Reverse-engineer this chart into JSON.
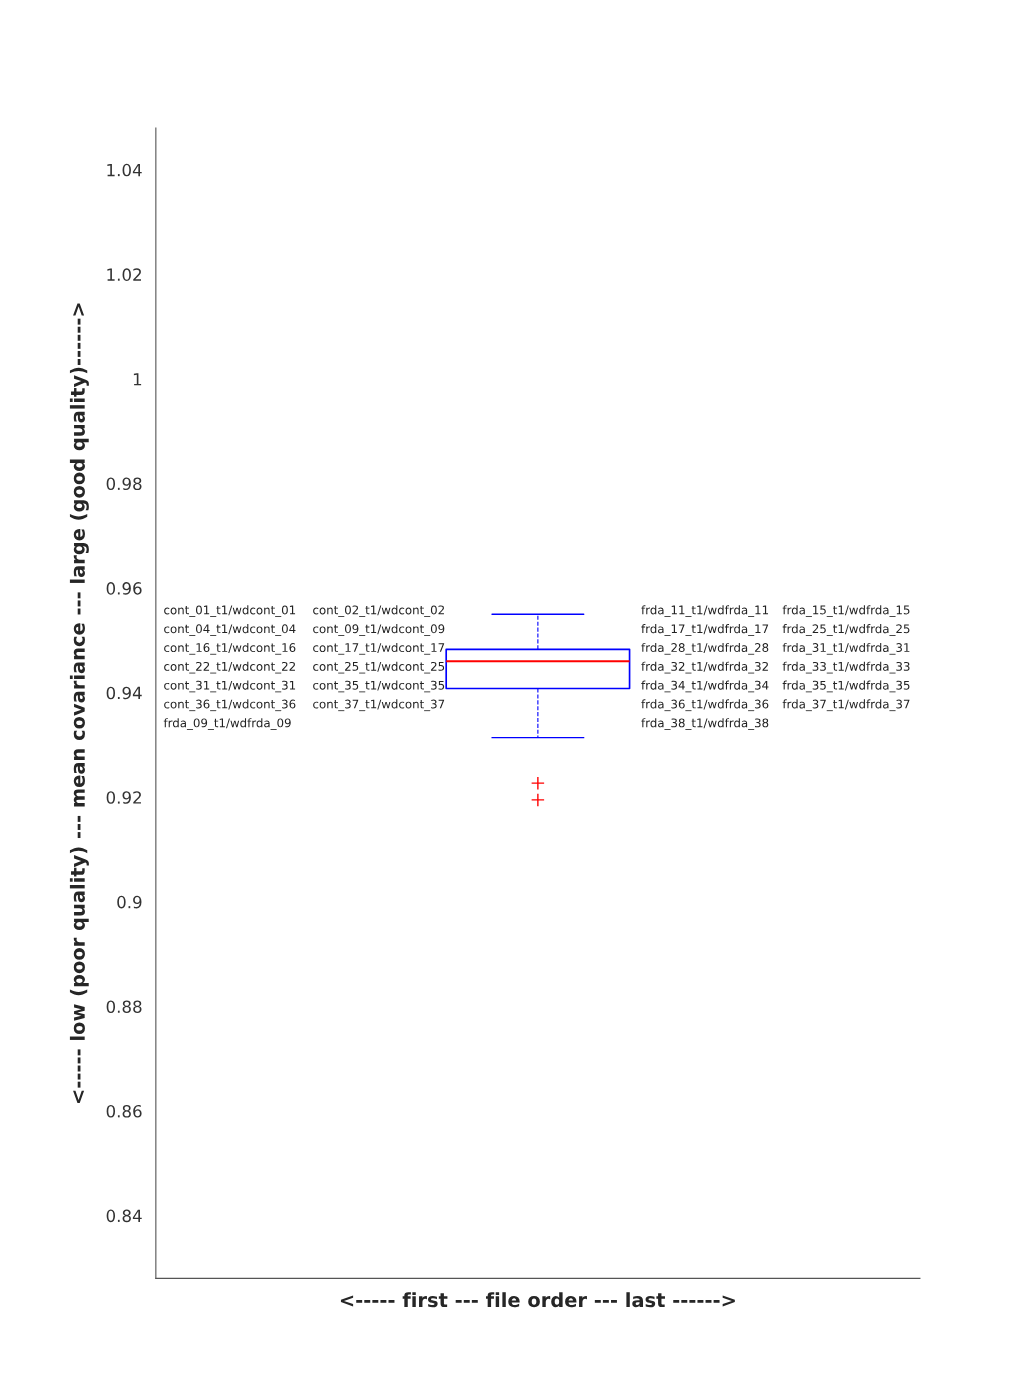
{
  "chart_data": {
    "type": "box",
    "xlabel": "<----- first --- file order --- last ------>",
    "ylabel": "<----- low (poor quality) --- mean covariance --- large (good quality)------>",
    "categories": [
      null
    ],
    "color": "#0000ff",
    "boxes": [
      {
        "low": 0.9314,
        "q1": 0.9408,
        "median": 0.946,
        "q3": 0.9483,
        "high": 0.955,
        "outliers": [
          0.9227,
          0.9195
        ]
      }
    ],
    "ylim": [
      0.828,
      1.048
    ],
    "yticks": [
      0.84,
      0.86,
      0.88,
      0.9,
      0.92,
      0.94,
      0.96,
      0.98,
      1,
      1.02,
      1.04
    ],
    "tick_labels": "y",
    "grid": false,
    "annotations": [
      "cont_01_t1/wdcont_01",
      "cont_02_t1/wdcont_02",
      "cont_04_t1/wdcont_04",
      "cont_09_t1/wdcont_09",
      "cont_16_t1/wdcont_16",
      "cont_17_t1/wdcont_17",
      "cont_22_t1/wdcont_22",
      "cont_25_t1/wdcont_25",
      "cont_31_t1/wdcont_31",
      "cont_35_t1/wdcont_35",
      "cont_36_t1/wdcont_36",
      "cont_37_t1/wdcont_37",
      "frda_09_t1/wdfrda_09",
      "frda_11_t1/wdfrda_11",
      "frda_15_t1/wdfrda_15",
      "frda_17_t1/wdfrda_17",
      "frda_25_t1/wdfrda_25",
      "frda_28_t1/wdfrda_28",
      "frda_31_t1/wdfrda_31",
      "frda_32_t1/wdfrda_32",
      "frda_33_t1/wdfrda_33",
      "frda_34_t1/wdfrda_34",
      "frda_35_t1/wdfrda_35",
      "frda_36_t1/wdfrda_36",
      "frda_37_t1/wdfrda_37",
      "frda_38_t1/wdfrda_38"
    ]
  }
}
